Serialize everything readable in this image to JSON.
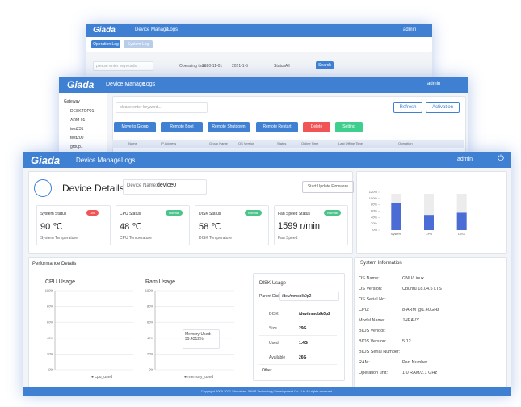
{
  "back_window": {
    "brand": "Giada",
    "nav": [
      "Device Manage",
      "Logs"
    ],
    "user": "admin",
    "tabs": [
      "Operation Log",
      "System Log"
    ],
    "search_placeholder": "please enter keywords",
    "time_label": "Operating time",
    "start_date": "2020-11-01",
    "end_date": "2021-1-5",
    "status_label": "Status",
    "status_value": "All",
    "search_button": "Search"
  },
  "middle_window": {
    "brand": "Giada",
    "nav": [
      "Device Manage",
      "Logs"
    ],
    "user": "admin",
    "tree": [
      "Gateway",
      "DESKTOP01",
      "ARM-01",
      "test231",
      "test200",
      "group1"
    ],
    "search_placeholder": "please enter keyword...",
    "refresh": "Refresh",
    "activation": "Activation",
    "actions": [
      "Move to Group",
      "Remote Boot",
      "Remote Shutdown",
      "Remote Restart",
      "Delete",
      "Setting"
    ],
    "columns": [
      "Name",
      "IP Address",
      "Group Name",
      "OS Version",
      "Status",
      "Online Time",
      "Last Offline Time",
      "Operation"
    ]
  },
  "front_window": {
    "brand": "Giada",
    "nav": [
      "Device Manage",
      "Logs"
    ],
    "user": "admin",
    "title": "Device Details",
    "device_name_label": "Device Name:",
    "device_name": "device0",
    "update_button": "Start Update Firmware",
    "status_cards": [
      {
        "title": "System Status",
        "badge": "Live",
        "value": "90 ℃",
        "caption": "System Temperature"
      },
      {
        "title": "CPU Status",
        "badge": "Normal",
        "value": "48 ℃",
        "caption": "CPU Temperature"
      },
      {
        "title": "DISK Status",
        "badge": "Normal",
        "value": "58 ℃",
        "caption": "DISK Temperature"
      },
      {
        "title": "Fan Speed Status",
        "badge": "Normal",
        "value": "1599 r/min",
        "caption": "Fan Speed"
      }
    ],
    "usage_chart": {
      "type": "bar",
      "categories": [
        "System",
        "CPU",
        "DISK"
      ],
      "values": [
        85,
        48,
        55
      ],
      "color": "#4a6cd4",
      "ylim": [
        0,
        120
      ],
      "yticks": [
        {
          "value": 0,
          "label": "0%"
        },
        {
          "value": 20,
          "label": "20%"
        },
        {
          "value": 40,
          "label": "40%"
        },
        {
          "value": 60,
          "label": "60%"
        },
        {
          "value": 80,
          "label": "80%"
        },
        {
          "value": 100,
          "label": "100%"
        },
        {
          "value": 120,
          "label": "120%"
        }
      ]
    },
    "performance": {
      "title": "Performance Details",
      "cpu_title": "CPU Usage",
      "ram_title": "Ram Usage",
      "ylim": [
        0,
        100
      ],
      "yticks": [
        {
          "value": 0,
          "label": "0%"
        },
        {
          "value": 20,
          "label": "20%"
        },
        {
          "value": 40,
          "label": "40%"
        },
        {
          "value": 60,
          "label": "60%"
        },
        {
          "value": 80,
          "label": "80%"
        },
        {
          "value": 100,
          "label": "100%"
        }
      ],
      "cpu_legend": "cpu_used",
      "ram_legend": "memory_used",
      "tooltip": [
        "Memory Used:",
        "99.4312%"
      ]
    },
    "disk": {
      "title": "DISK Usage",
      "parent_label": "Parent Disk",
      "parent_value": "/dev/mmcblk0p2",
      "rows": [
        [
          "DISK",
          "/dev/mmcblk0p2"
        ],
        [
          "Size",
          "29G"
        ],
        [
          "Used",
          "1.4G"
        ],
        [
          "Available",
          "26G"
        ]
      ],
      "other": "Other"
    },
    "system_info": {
      "title": "System Information",
      "rows": [
        [
          "OS Name:",
          "GNU/Linux"
        ],
        [
          "OS Version:",
          "Ubuntu 18.04.5 LTS"
        ],
        [
          "OS Serial No:",
          ""
        ],
        [
          "CPU:",
          "8-ARM @1.40GHz"
        ],
        [
          "Model Name:",
          "JHEAVY"
        ],
        [
          "BIOS Vendor:",
          ""
        ],
        [
          "BIOS Version:",
          "5.12"
        ],
        [
          "BIOS Serial Number:",
          ""
        ],
        [
          "RAM:",
          "Part Number"
        ],
        [
          "Operation unit:",
          "1.0 RAM/2.1 GHz"
        ]
      ]
    },
    "footer": "Copyright 2009-2021 Shenzhen JHMP Technology Development Co., Ltd All rights reserved."
  }
}
